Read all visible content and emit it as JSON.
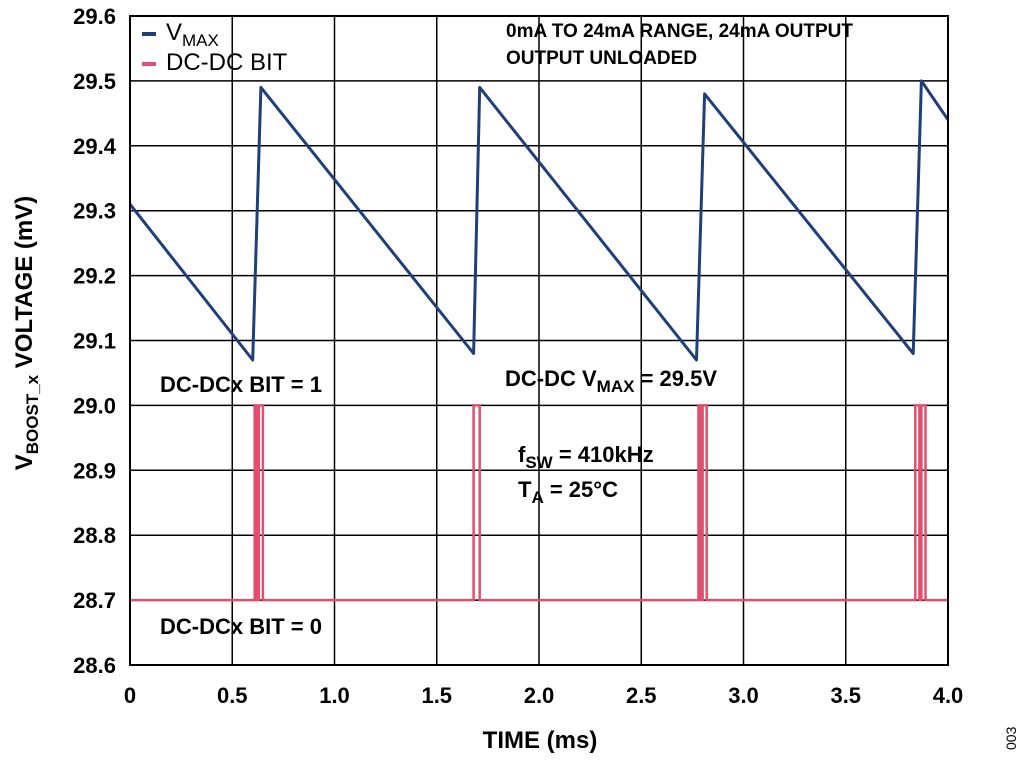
{
  "chart_data": {
    "type": "line",
    "xlabel": "TIME (ms)",
    "ylabel": {
      "main": "V",
      "sub": "BOOST_x",
      "rest": " VOLTAGE (mV)"
    },
    "xlim": [
      0,
      4.0
    ],
    "ylim": [
      28.6,
      29.6
    ],
    "xticks": [
      "0",
      "0.5",
      "1.0",
      "1.5",
      "2.0",
      "2.5",
      "3.0",
      "3.5",
      "4.0"
    ],
    "yticks": [
      "28.6",
      "28.7",
      "28.8",
      "28.9",
      "29.0",
      "29.1",
      "29.2",
      "29.3",
      "29.4",
      "29.5",
      "29.6"
    ],
    "grid": true,
    "legend_position": "top-left",
    "series": [
      {
        "name": {
          "main": "V",
          "sub": "MAX"
        },
        "color": "#1f3f7a",
        "points": [
          [
            0.0,
            29.31
          ],
          [
            0.6,
            29.07
          ],
          [
            0.64,
            29.49
          ],
          [
            1.68,
            29.08
          ],
          [
            1.71,
            29.49
          ],
          [
            2.77,
            29.07
          ],
          [
            2.81,
            29.48
          ],
          [
            3.83,
            29.08
          ],
          [
            3.87,
            29.5
          ],
          [
            4.0,
            29.44
          ]
        ]
      },
      {
        "name": {
          "main": "DC-DC BIT",
          "sub": ""
        },
        "color": "#e0506e",
        "low": 28.7,
        "high": 29.0,
        "pulses": [
          [
            0.61,
            0.62
          ],
          [
            0.63,
            0.65
          ],
          [
            1.68,
            1.71
          ],
          [
            2.78,
            2.79
          ],
          [
            2.8,
            2.82
          ],
          [
            3.84,
            3.86
          ],
          [
            3.87,
            3.89
          ]
        ]
      }
    ],
    "annotations": {
      "range_line1": "0mA TO 24mA RANGE, 24mA OUTPUT",
      "range_line2": "OUTPUT UNLOADED",
      "bit_high": "DC-DCx BIT = 1",
      "bit_low": "DC-DCx BIT = 0",
      "vmax_main": "DC-DC V",
      "vmax_sub": "MAX",
      "vmax_val": " = 29.5V",
      "fsw_main": "f",
      "fsw_sub": "SW",
      "fsw_val": " = 410kHz",
      "ta_main": "T",
      "ta_sub": "A",
      "ta_val": " = 25°C"
    },
    "figure_id": "003"
  }
}
